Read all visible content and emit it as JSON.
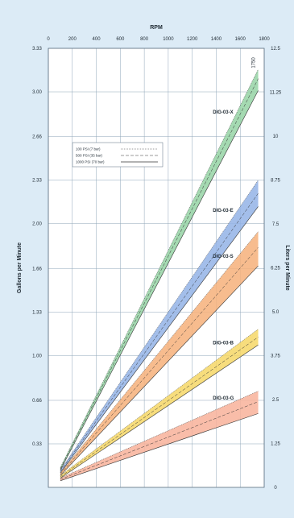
{
  "colors": {
    "page_background": "#dcebf6",
    "plot_background": "#ffffff",
    "grid": "#8fa6b8",
    "axis_text": "#1f2a33",
    "band_green": "#95d3a4",
    "band_blue": "#93b3e6",
    "band_orange": "#f6b07a",
    "band_yellow": "#f6d766",
    "band_salmon": "#f8b29a"
  },
  "chart_data": {
    "type": "line",
    "title": "",
    "xlabel": "RPM",
    "ylabel_left": "Gallons per Minute",
    "ylabel_right": "Liters per Minute",
    "xlim": [
      0,
      1800
    ],
    "ylim_gpm": [
      0,
      3.33
    ],
    "ylim_lpm": [
      0,
      12.5
    ],
    "x_ticks": [
      0,
      200,
      400,
      600,
      800,
      1000,
      1200,
      1400,
      1600,
      1800
    ],
    "y_ticks_gpm": [
      "0.33",
      "0.66",
      "1.00",
      "1.33",
      "1.66",
      "2.00",
      "2.33",
      "2.66",
      "3.00",
      "3.33"
    ],
    "y_ticks_gpm_values": [
      0.33,
      0.66,
      1.0,
      1.33,
      1.66,
      2.0,
      2.33,
      2.66,
      3.0,
      3.33
    ],
    "y_ticks_lpm": [
      "0",
      "1.25",
      "2.5",
      "3.75",
      "5.0",
      "6.25",
      "7.5",
      "8.75",
      "10",
      "11.25",
      "12.5"
    ],
    "y_ticks_lpm_values": [
      0,
      1.25,
      2.5,
      3.75,
      5.0,
      6.25,
      7.5,
      8.75,
      10,
      11.25,
      12.5
    ],
    "grid": true,
    "top_right_annotation": "1750",
    "legend": {
      "placement": "upper-left",
      "entries": [
        "100 PSI (7 bar)",
        "500 PSI (35 bar)",
        "1000 PSI (70 bar)"
      ]
    },
    "series": [
      {
        "name": "DIG-03-X",
        "color_key": "band_green",
        "x": [
          100,
          1750
        ],
        "upper_100psi": [
          0.15,
          3.17
        ],
        "mid_500psi": [
          0.14,
          3.1
        ],
        "lower_1000psi": [
          0.13,
          3.01
        ]
      },
      {
        "name": "DIG-03-E",
        "color_key": "band_blue",
        "x": [
          100,
          1750
        ],
        "upper_100psi": [
          0.13,
          2.33
        ],
        "mid_500psi": [
          0.12,
          2.23
        ],
        "lower_1000psi": [
          0.11,
          2.13
        ]
      },
      {
        "name": "DIG-03-S",
        "color_key": "band_orange",
        "x": [
          100,
          1750
        ],
        "upper_100psi": [
          0.11,
          1.94
        ],
        "mid_500psi": [
          0.1,
          1.82
        ],
        "lower_1000psi": [
          0.09,
          1.68
        ]
      },
      {
        "name": "DIG-03-B",
        "color_key": "band_yellow",
        "x": [
          100,
          1750
        ],
        "upper_100psi": [
          0.09,
          1.2
        ],
        "mid_500psi": [
          0.08,
          1.14
        ],
        "lower_1000psi": [
          0.07,
          1.08
        ]
      },
      {
        "name": "DIG-03-G",
        "color_key": "band_salmon",
        "x": [
          100,
          1750
        ],
        "upper_100psi": [
          0.07,
          0.73
        ],
        "mid_500psi": [
          0.06,
          0.65
        ],
        "lower_1000psi": [
          0.05,
          0.56
        ]
      }
    ]
  }
}
